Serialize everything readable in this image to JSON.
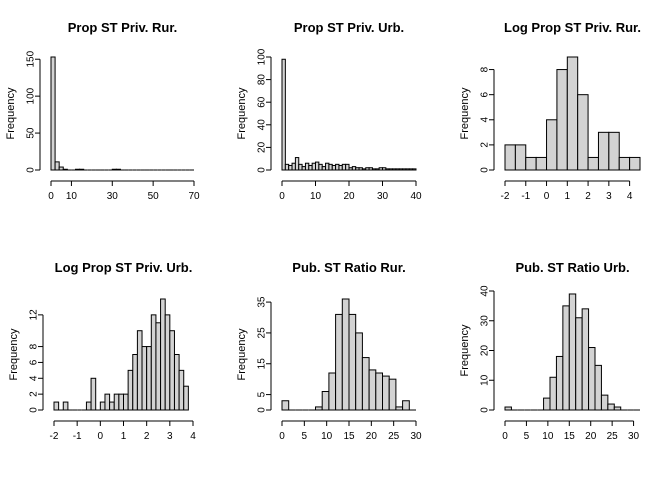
{
  "style": {
    "bar_fill": "#d3d3d3",
    "bar_stroke": "#000000",
    "axis_color": "#000000",
    "background": "#ffffff"
  },
  "chart_data": [
    {
      "type": "bar",
      "title": "Prop ST Priv. Rur.",
      "xlabel": "",
      "ylabel": "Frequency",
      "binwidth": 2,
      "bin_starts": [
        0,
        2,
        4,
        6,
        8,
        10,
        12,
        14,
        16,
        18,
        20,
        22,
        24,
        26,
        28,
        30,
        32,
        34,
        36,
        38,
        40,
        42,
        44,
        46,
        48,
        50,
        52,
        54,
        56,
        58,
        60,
        62,
        64,
        66,
        68
      ],
      "values": [
        153,
        11,
        4,
        1,
        0,
        0,
        1,
        1,
        0,
        0,
        0,
        0,
        0,
        0,
        0,
        1,
        1,
        0,
        0,
        0,
        0,
        0,
        0,
        0,
        0,
        0,
        0,
        0,
        0,
        0,
        0,
        0,
        0,
        0,
        0
      ],
      "xlim": [
        0,
        70
      ],
      "ylim": [
        0,
        153
      ],
      "xticks": [
        0,
        10,
        30,
        50,
        70
      ],
      "xtick_labels": [
        "0",
        "10",
        "30",
        "50",
        "70"
      ],
      "yticks": [
        0,
        50,
        100,
        150
      ],
      "ytick_labels": [
        "0",
        "50",
        "100",
        "150"
      ]
    },
    {
      "type": "bar",
      "title": "Prop ST Priv. Urb.",
      "xlabel": "",
      "ylabel": "Frequency",
      "binwidth": 1,
      "bin_starts": [
        0,
        1,
        2,
        3,
        4,
        5,
        6,
        7,
        8,
        9,
        10,
        11,
        12,
        13,
        14,
        15,
        16,
        17,
        18,
        19,
        20,
        21,
        22,
        23,
        24,
        25,
        26,
        27,
        28,
        29,
        30,
        31,
        32,
        33,
        34,
        35,
        36,
        37,
        38,
        39
      ],
      "values": [
        98,
        5,
        4,
        6,
        11,
        5,
        3,
        6,
        4,
        6,
        7,
        5,
        3,
        6,
        5,
        4,
        5,
        4,
        5,
        5,
        2,
        3,
        2,
        2,
        1,
        2,
        2,
        1,
        1,
        2,
        2,
        1,
        1,
        1,
        1,
        1,
        1,
        1,
        1,
        1
      ],
      "xlim": [
        0,
        40
      ],
      "ylim": [
        0,
        100
      ],
      "xticks": [
        0,
        10,
        20,
        30,
        40
      ],
      "xtick_labels": [
        "0",
        "10",
        "20",
        "30",
        "40"
      ],
      "yticks": [
        0,
        20,
        40,
        60,
        80,
        100
      ],
      "ytick_labels": [
        "0",
        "20",
        "40",
        "60",
        "80",
        "100"
      ]
    },
    {
      "type": "bar",
      "title": "Log Prop ST Priv. Rur.",
      "xlabel": "",
      "ylabel": "Frequency",
      "binwidth": 0.5,
      "bin_starts": [
        -2,
        -1.5,
        -1,
        -0.5,
        0,
        0.5,
        1,
        1.5,
        2,
        2.5,
        3,
        3.5,
        4
      ],
      "values": [
        2,
        2,
        1,
        1,
        4,
        8,
        9,
        6,
        1,
        3,
        3,
        1,
        1
      ],
      "xlim": [
        -2,
        4.5
      ],
      "ylim": [
        0,
        9
      ],
      "xticks": [
        -2,
        -1,
        0,
        1,
        2,
        3,
        4
      ],
      "xtick_labels": [
        "-2",
        "-1",
        "0",
        "1",
        "2",
        "3",
        "4"
      ],
      "yticks": [
        0,
        2,
        4,
        6,
        8
      ],
      "ytick_labels": [
        "0",
        "2",
        "4",
        "6",
        "8"
      ]
    },
    {
      "type": "bar",
      "title": "Log Prop ST Priv. Urb.",
      "xlabel": "",
      "ylabel": "Frequency",
      "binwidth": 0.2,
      "bin_starts": [
        -2,
        -1.8,
        -1.6,
        -1.4,
        -1.2,
        -1,
        -0.8,
        -0.6,
        -0.4,
        -0.2,
        0,
        0.2,
        0.4,
        0.6,
        0.8,
        1,
        1.2,
        1.4,
        1.6,
        1.8,
        2,
        2.2,
        2.4,
        2.6,
        2.8,
        3,
        3.2,
        3.4,
        3.6
      ],
      "values": [
        1,
        0,
        1,
        0,
        0,
        0,
        0,
        1,
        4,
        0,
        1,
        2,
        1,
        2,
        2,
        2,
        5,
        7,
        10,
        8,
        8,
        12,
        11,
        14,
        12,
        10,
        7,
        5,
        3
      ],
      "xlim": [
        -2,
        4
      ],
      "ylim": [
        0,
        14
      ],
      "xticks": [
        -2,
        -1,
        0,
        1,
        2,
        3,
        4
      ],
      "xtick_labels": [
        "-2",
        "-1",
        "0",
        "1",
        "2",
        "3",
        "4"
      ],
      "yticks": [
        0,
        2,
        4,
        6,
        8,
        12
      ],
      "ytick_labels": [
        "0",
        "2",
        "4",
        "6",
        "8",
        "12"
      ]
    },
    {
      "type": "bar",
      "title": "Pub. ST Ratio Rur.",
      "xlabel": "",
      "ylabel": "Frequency",
      "binwidth": 1.5,
      "bin_starts": [
        0,
        1.5,
        3,
        4.5,
        6,
        7.5,
        9,
        10.5,
        12,
        13.5,
        15,
        16.5,
        18,
        19.5,
        21,
        22.5,
        24,
        25.5,
        27,
        28.5
      ],
      "values": [
        3,
        0,
        0,
        0,
        0,
        1,
        6,
        12,
        31,
        36,
        31,
        25,
        17,
        13,
        12,
        11,
        10,
        1,
        3,
        0
      ],
      "xlim": [
        0,
        30
      ],
      "ylim": [
        0,
        36
      ],
      "xticks": [
        0,
        5,
        10,
        15,
        20,
        25,
        30
      ],
      "xtick_labels": [
        "0",
        "5",
        "10",
        "15",
        "20",
        "25",
        "30"
      ],
      "yticks": [
        0,
        5,
        15,
        25,
        35
      ],
      "ytick_labels": [
        "0",
        "5",
        "15",
        "25",
        "35"
      ]
    },
    {
      "type": "bar",
      "title": "Pub. ST Ratio Urb.",
      "xlabel": "",
      "ylabel": "Frequency",
      "binwidth": 1.5,
      "bin_starts": [
        0,
        1.5,
        3,
        4.5,
        6,
        7.5,
        9,
        10.5,
        12,
        13.5,
        15,
        16.5,
        18,
        19.5,
        21,
        22.5,
        24,
        25.5,
        27,
        28.5,
        30
      ],
      "values": [
        1,
        0,
        0,
        0,
        0,
        0,
        4,
        11,
        18,
        35,
        39,
        31,
        34,
        21,
        15,
        5,
        2,
        1,
        0,
        0,
        0
      ],
      "xlim": [
        0,
        31.5
      ],
      "ylim": [
        0,
        40
      ],
      "xticks": [
        0,
        5,
        10,
        15,
        20,
        25,
        30
      ],
      "xtick_labels": [
        "0",
        "5",
        "10",
        "15",
        "20",
        "25",
        "30"
      ],
      "yticks": [
        0,
        10,
        20,
        30,
        40
      ],
      "ytick_labels": [
        "0",
        "10",
        "20",
        "30",
        "40"
      ]
    }
  ]
}
